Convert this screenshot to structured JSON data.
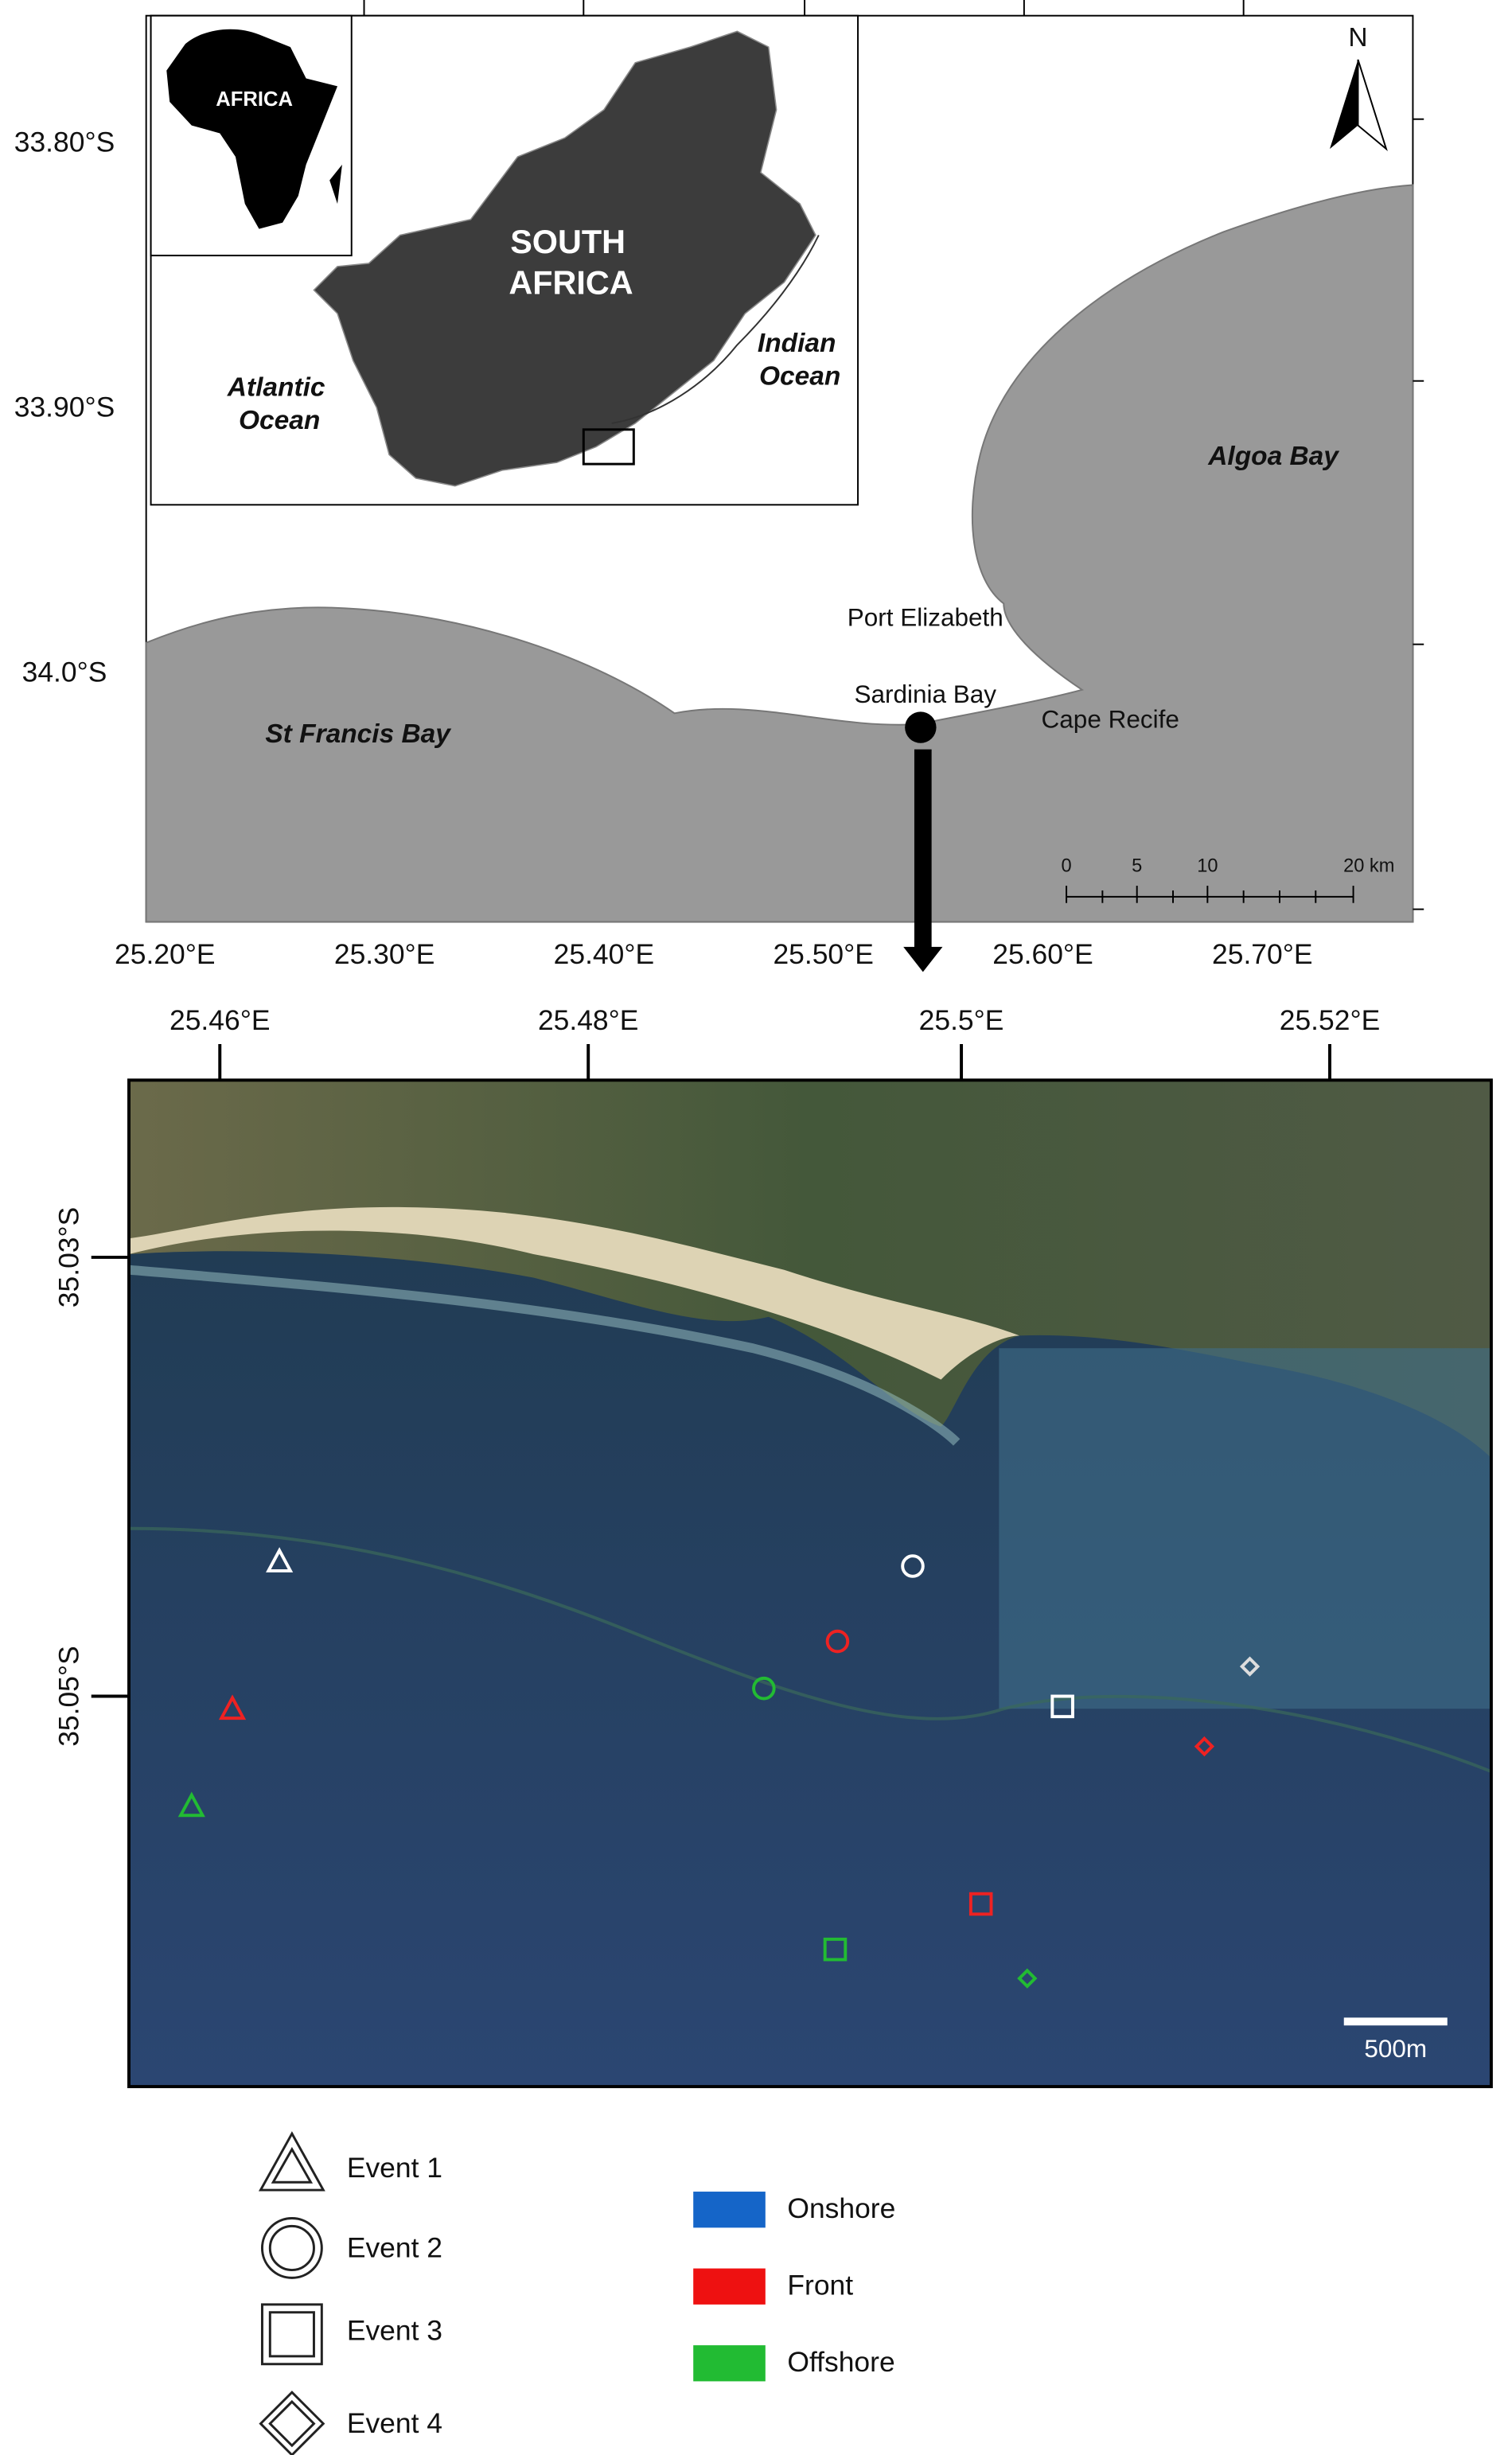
{
  "top_map": {
    "inset": {
      "continent": "AFRICA",
      "country": [
        "SOUTH",
        "AFRICA"
      ],
      "atlantic": [
        "Atlantic",
        "Ocean"
      ],
      "indian": [
        "Indian",
        "Ocean"
      ]
    },
    "latitude_labels": [
      "33.80°S",
      "33.90°S",
      "34.0°S"
    ],
    "longitude_labels": [
      "25.20°E",
      "25.30°E",
      "25.40°E",
      "25.50°E",
      "25.60°E",
      "25.70°E"
    ],
    "places": {
      "algoa": "Algoa Bay",
      "port_elizabeth": "Port Elizabeth",
      "sardinia": "Sardinia Bay",
      "cape_recife": "Cape Recife",
      "st_francis": "St Francis Bay"
    },
    "north": "N",
    "scale_labels": [
      "0",
      "5",
      "10",
      "20 km"
    ]
  },
  "bottom_map": {
    "longitude_labels": [
      "25.46°E",
      "25.48°E",
      "25.5°E",
      "25.52°E"
    ],
    "latitude_labels": [
      "35.03°S",
      "35.05°S"
    ],
    "scale_label": "500m"
  },
  "legend": {
    "events": [
      "Event 1",
      "Event 2",
      "Event 3",
      "Event 4"
    ],
    "zones": [
      {
        "name": "Onshore",
        "color": "#1565c8"
      },
      {
        "name": "Front",
        "color": "#ee1111"
      },
      {
        "name": "Offshore",
        "color": "#22bb33"
      }
    ]
  }
}
